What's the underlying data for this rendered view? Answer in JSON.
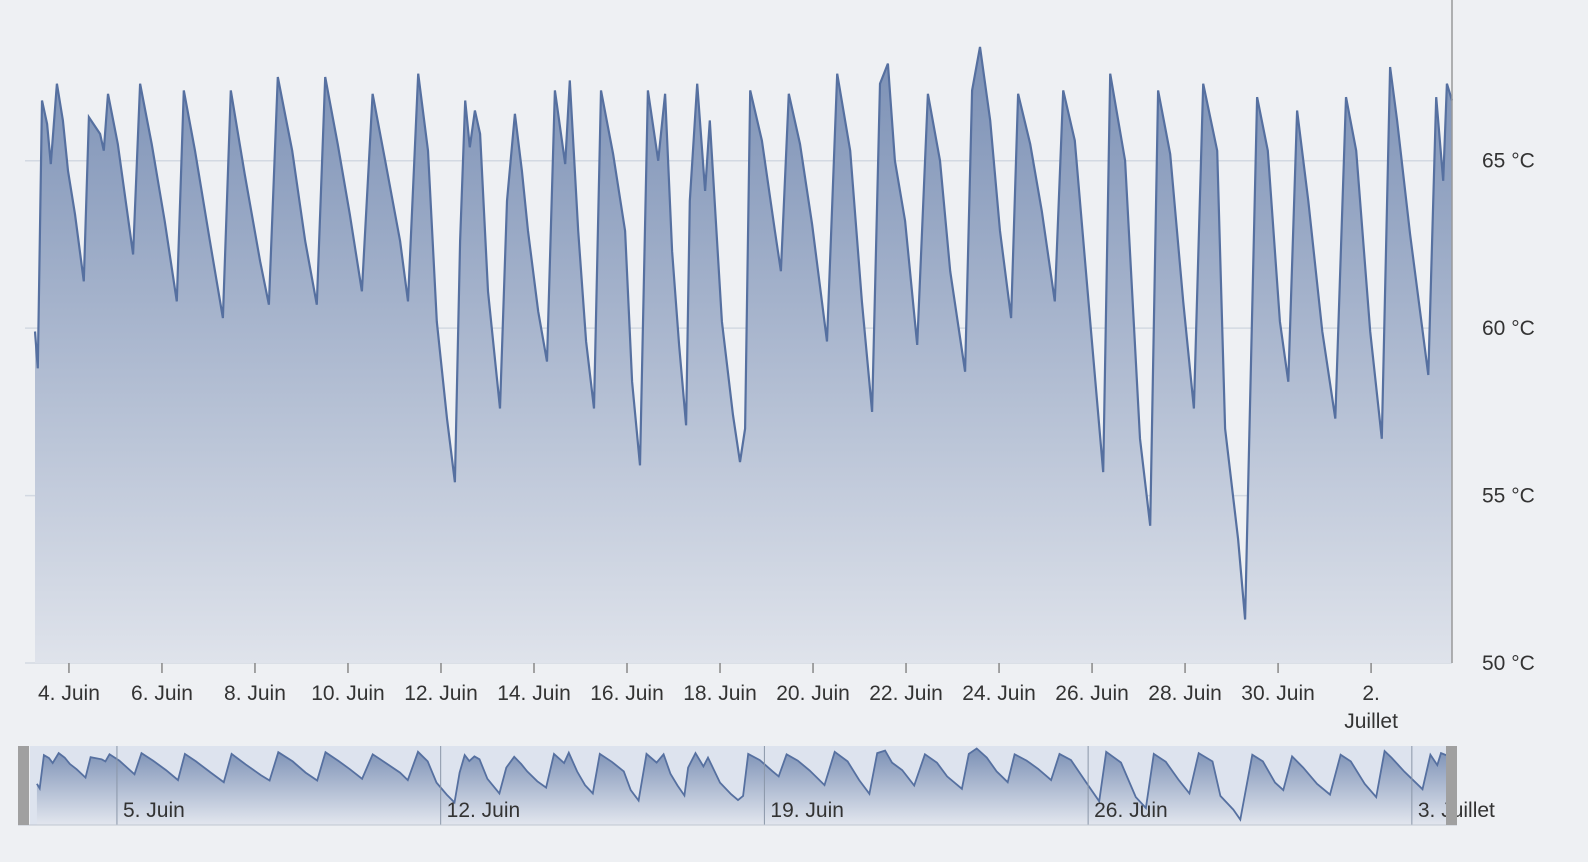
{
  "chart_data": {
    "type": "area",
    "color": "#5670a0",
    "x": [
      3.27,
      3.33,
      3.42,
      3.53,
      3.61,
      3.74,
      3.87,
      3.98,
      4.13,
      4.32,
      4.43,
      4.67,
      4.75,
      4.84,
      5.05,
      5.38,
      5.53,
      5.78,
      6.06,
      6.32,
      6.47,
      6.71,
      7.03,
      7.31,
      7.48,
      7.78,
      8.11,
      8.3,
      8.49,
      8.8,
      9.08,
      9.33,
      9.51,
      9.78,
      10.04,
      10.3,
      10.53,
      10.8,
      11.12,
      11.29,
      11.51,
      11.72,
      11.91,
      12.13,
      12.3,
      12.41,
      12.52,
      12.62,
      12.73,
      12.84,
      13.01,
      13.27,
      13.42,
      13.59,
      13.74,
      13.87,
      14.09,
      14.28,
      14.45,
      14.67,
      14.77,
      14.95,
      15.12,
      15.29,
      15.44,
      15.7,
      15.96,
      16.11,
      16.28,
      16.45,
      16.67,
      16.82,
      16.97,
      17.12,
      17.27,
      17.35,
      17.51,
      17.68,
      17.78,
      18.04,
      18.28,
      18.43,
      18.54,
      18.65,
      18.9,
      19.18,
      19.31,
      19.48,
      19.72,
      19.98,
      20.3,
      20.52,
      20.8,
      21.05,
      21.27,
      21.44,
      21.61,
      21.76,
      21.98,
      22.24,
      22.47,
      22.73,
      22.95,
      23.27,
      23.42,
      23.59,
      23.81,
      24.02,
      24.26,
      24.41,
      24.67,
      24.92,
      25.2,
      25.38,
      25.63,
      25.96,
      26.24,
      26.39,
      26.71,
      27.03,
      27.25,
      27.42,
      27.68,
      27.96,
      28.19,
      28.39,
      28.69,
      28.86,
      29.14,
      29.29,
      29.55,
      29.78,
      30.04,
      30.22,
      30.41,
      30.65,
      30.95,
      31.23,
      31.46,
      31.68,
      31.98,
      32.23,
      32.41,
      32.56,
      32.84,
      33.23,
      33.4,
      33.55,
      33.63,
      33.74
    ],
    "values": [
      59.9,
      58.8,
      66.8,
      66.1,
      64.9,
      67.3,
      66.2,
      64.7,
      63.4,
      61.4,
      66.3,
      65.8,
      65.3,
      67.0,
      65.5,
      62.2,
      67.3,
      65.5,
      63.2,
      60.8,
      67.1,
      65.3,
      62.6,
      60.3,
      67.1,
      64.6,
      62.0,
      60.7,
      67.5,
      65.3,
      62.6,
      60.7,
      67.5,
      65.5,
      63.4,
      61.1,
      67.0,
      65.0,
      62.6,
      60.8,
      67.6,
      65.3,
      60.2,
      57.3,
      55.4,
      62.6,
      66.8,
      65.4,
      66.5,
      65.8,
      61.1,
      57.6,
      63.8,
      66.4,
      64.7,
      62.9,
      60.5,
      59.0,
      67.1,
      64.9,
      67.4,
      62.9,
      59.6,
      57.6,
      67.1,
      65.2,
      62.9,
      58.4,
      55.9,
      67.1,
      65.0,
      67.0,
      62.3,
      59.5,
      57.1,
      63.8,
      67.3,
      64.1,
      66.2,
      60.2,
      57.4,
      56.0,
      57.0,
      67.1,
      65.6,
      62.9,
      61.7,
      67.0,
      65.5,
      63.1,
      59.6,
      67.6,
      65.3,
      60.8,
      57.5,
      67.3,
      67.9,
      65.0,
      63.2,
      59.5,
      67.0,
      65.0,
      61.7,
      58.7,
      67.1,
      68.4,
      66.2,
      62.9,
      60.3,
      67.0,
      65.5,
      63.5,
      60.8,
      67.1,
      65.6,
      60.2,
      55.7,
      67.6,
      65.0,
      56.7,
      54.1,
      67.1,
      65.2,
      60.8,
      57.6,
      67.3,
      65.3,
      57.0,
      53.7,
      51.3,
      66.9,
      65.3,
      60.2,
      58.4,
      66.5,
      63.8,
      59.9,
      57.3,
      66.9,
      65.3,
      59.9,
      56.7,
      67.8,
      66.2,
      62.8,
      58.6,
      66.9,
      64.4,
      67.3,
      66.8
    ],
    "xlim": [
      3.27,
      33.74
    ],
    "ylim": [
      50,
      69.8
    ],
    "xticks": [
      {
        "value": 4,
        "label": "4. Juin"
      },
      {
        "value": 6,
        "label": "6. Juin"
      },
      {
        "value": 8,
        "label": "8. Juin"
      },
      {
        "value": 10,
        "label": "10. Juin"
      },
      {
        "value": 12,
        "label": "12. Juin"
      },
      {
        "value": 14,
        "label": "14. Juin"
      },
      {
        "value": 16,
        "label": "16. Juin"
      },
      {
        "value": 18,
        "label": "18. Juin"
      },
      {
        "value": 20,
        "label": "20. Juin"
      },
      {
        "value": 22,
        "label": "22. Juin"
      },
      {
        "value": 24,
        "label": "24. Juin"
      },
      {
        "value": 26,
        "label": "26. Juin"
      },
      {
        "value": 28,
        "label": "28. Juin"
      },
      {
        "value": 30,
        "label": "30. Juin"
      },
      {
        "value": 32,
        "label": "2. Juillet"
      }
    ],
    "yticks": [
      {
        "value": 50,
        "label": "50 °C"
      },
      {
        "value": 55,
        "label": "55 °C"
      },
      {
        "value": 60,
        "label": "60 °C"
      },
      {
        "value": 65,
        "label": "65 °C"
      }
    ],
    "grid": true,
    "navigator": {
      "xlim": [
        3.12,
        33.76
      ],
      "ylim": [
        50,
        69
      ],
      "xticks": [
        {
          "value": 5,
          "label": "5. Juin"
        },
        {
          "value": 12,
          "label": "12. Juin"
        },
        {
          "value": 19,
          "label": "19. Juin"
        },
        {
          "value": 26,
          "label": "26. Juin"
        },
        {
          "value": 33,
          "label": "3. Juillet"
        }
      ]
    }
  }
}
